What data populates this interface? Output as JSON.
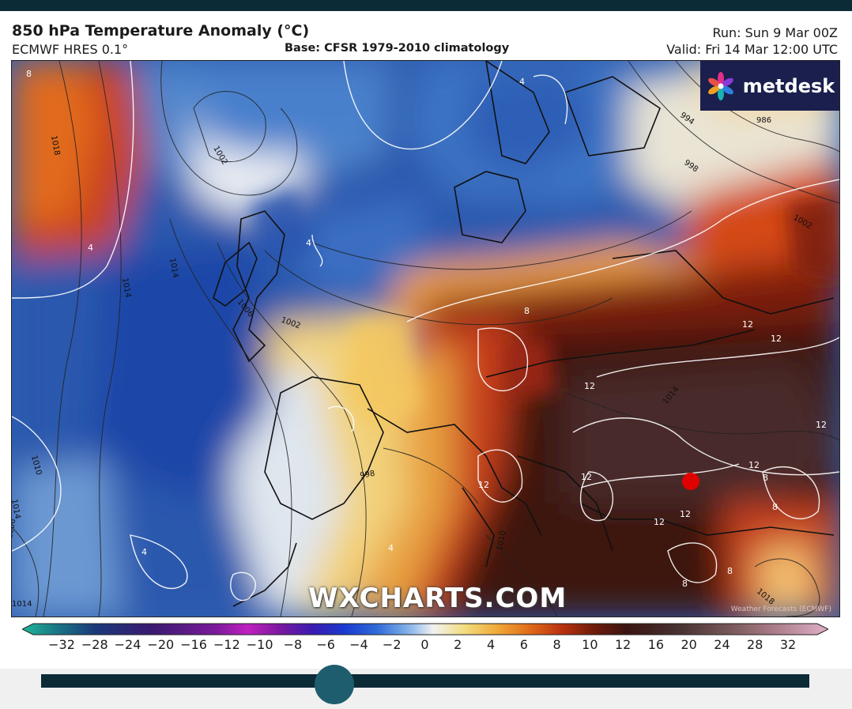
{
  "header": {
    "title": "850 hPa Temperature Anomaly (°C)",
    "model": "ECMWF HRES 0.1°",
    "base": "Base: CFSR 1979-2010 climatology",
    "run": "Run: Sun 9 Mar 00Z",
    "valid": "Valid: Fri 14 Mar 12:00 UTC"
  },
  "logo": {
    "text": "metdesk",
    "icon": "flower-icon"
  },
  "watermark": "WXCHARTS.COM",
  "credit": "Weather Forecasts (ECMWF)",
  "map": {
    "isobar_labels": [
      "1018",
      "1002",
      "1014",
      "1014",
      "1006",
      "1002",
      "1014",
      "1010",
      "994",
      "998",
      "986",
      "1002",
      "1014",
      "1010",
      "1018",
      "1014",
      "1006",
      "998"
    ],
    "anomaly_labels": [
      "8",
      "4",
      "4",
      "4",
      "4",
      "8",
      "12",
      "12",
      "12",
      "12",
      "12",
      "12",
      "12",
      "12",
      "8",
      "8",
      "8",
      "12",
      "8",
      "4"
    ],
    "marker_color": "#e00000"
  },
  "colorbar": {
    "ticks": [
      "−32",
      "−28",
      "−24",
      "−20",
      "−16",
      "−12",
      "−10",
      "−8",
      "−6",
      "−4",
      "−2",
      "0",
      "2",
      "4",
      "6",
      "8",
      "10",
      "12",
      "16",
      "20",
      "24",
      "28",
      "32"
    ]
  },
  "slider": {
    "position_fraction": 0.36
  }
}
